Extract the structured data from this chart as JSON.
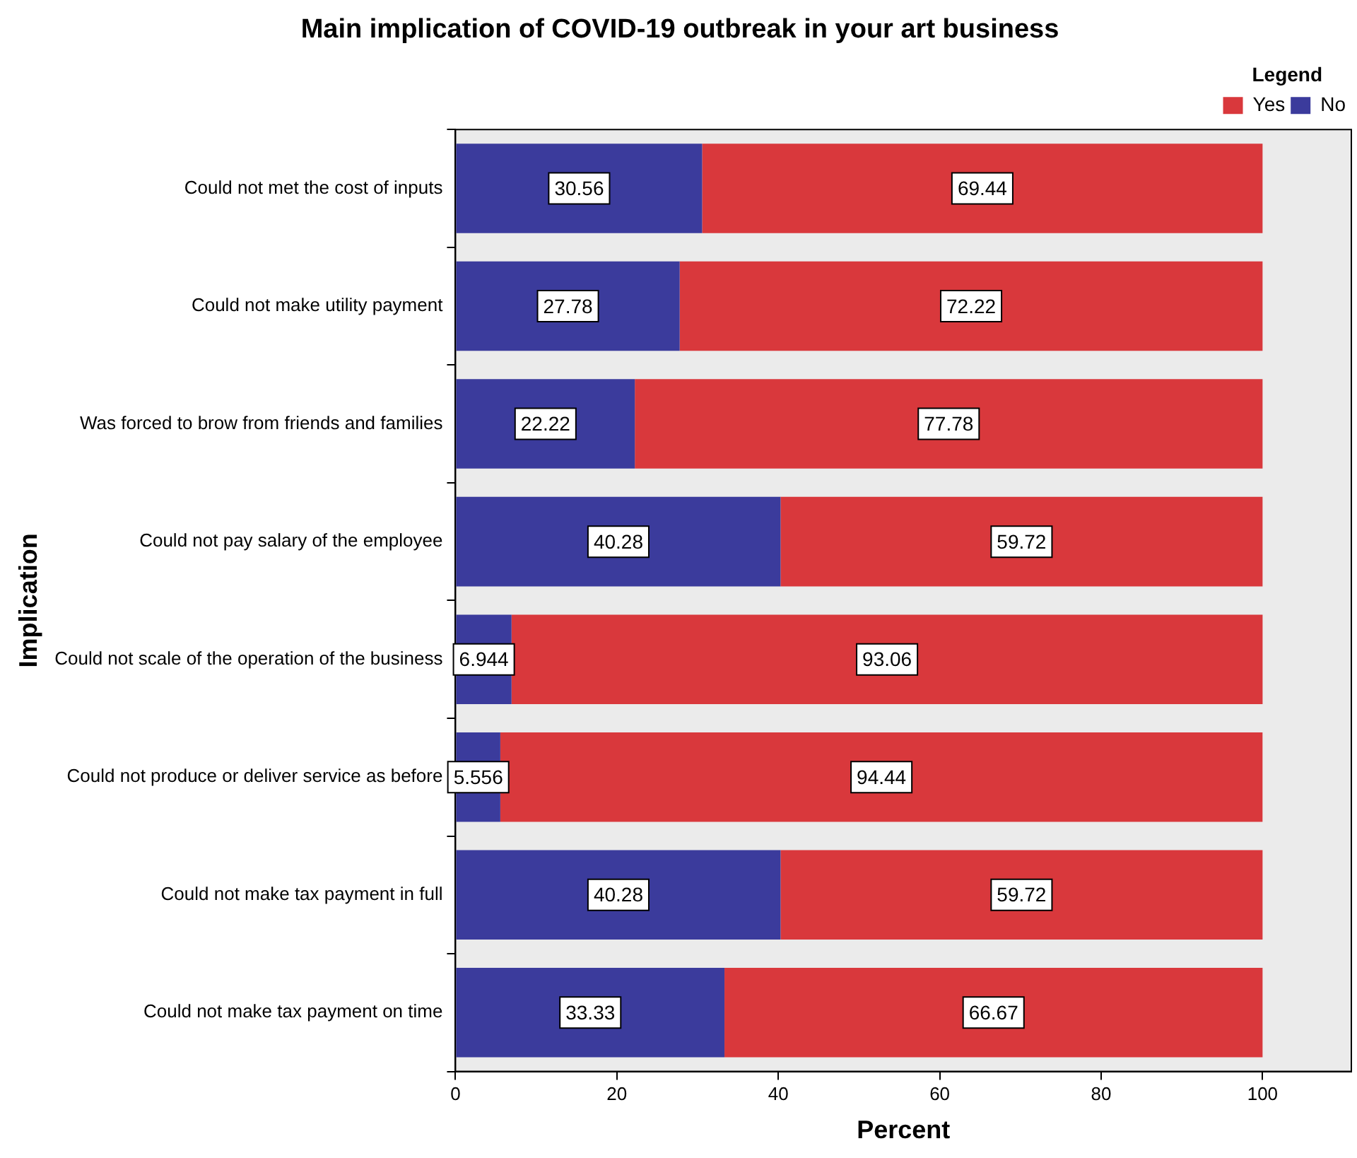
{
  "chart_data": {
    "type": "bar",
    "orientation": "horizontal",
    "stacked": true,
    "title": "Main implication of COVID-19 outbreak in your art business",
    "xlabel": "Percent",
    "ylabel": "Implication",
    "legend_title": "Legend",
    "legend": "top right",
    "categories": [
      "Could not met the cost of inputs",
      "Could not make utility payment",
      "Was forced to brow from friends and families",
      "Could not pay salary of the employee",
      "Could not scale of the operation of the business",
      "Could not produce or deliver service as before",
      "Could not make tax payment in full",
      "Could not make tax payment on time"
    ],
    "series": [
      {
        "name": "No",
        "color": "#3b3b9c",
        "values": [
          30.56,
          27.78,
          22.22,
          40.28,
          6.944,
          5.556,
          40.28,
          33.33
        ]
      },
      {
        "name": "Yes",
        "color": "#d9383c",
        "values": [
          69.44,
          72.22,
          77.78,
          59.72,
          93.06,
          94.44,
          59.72,
          66.67
        ]
      }
    ],
    "xlim": [
      0,
      111
    ],
    "xticks": [
      0,
      20,
      40,
      60,
      80,
      100
    ],
    "grid": false,
    "data_labels": true
  }
}
